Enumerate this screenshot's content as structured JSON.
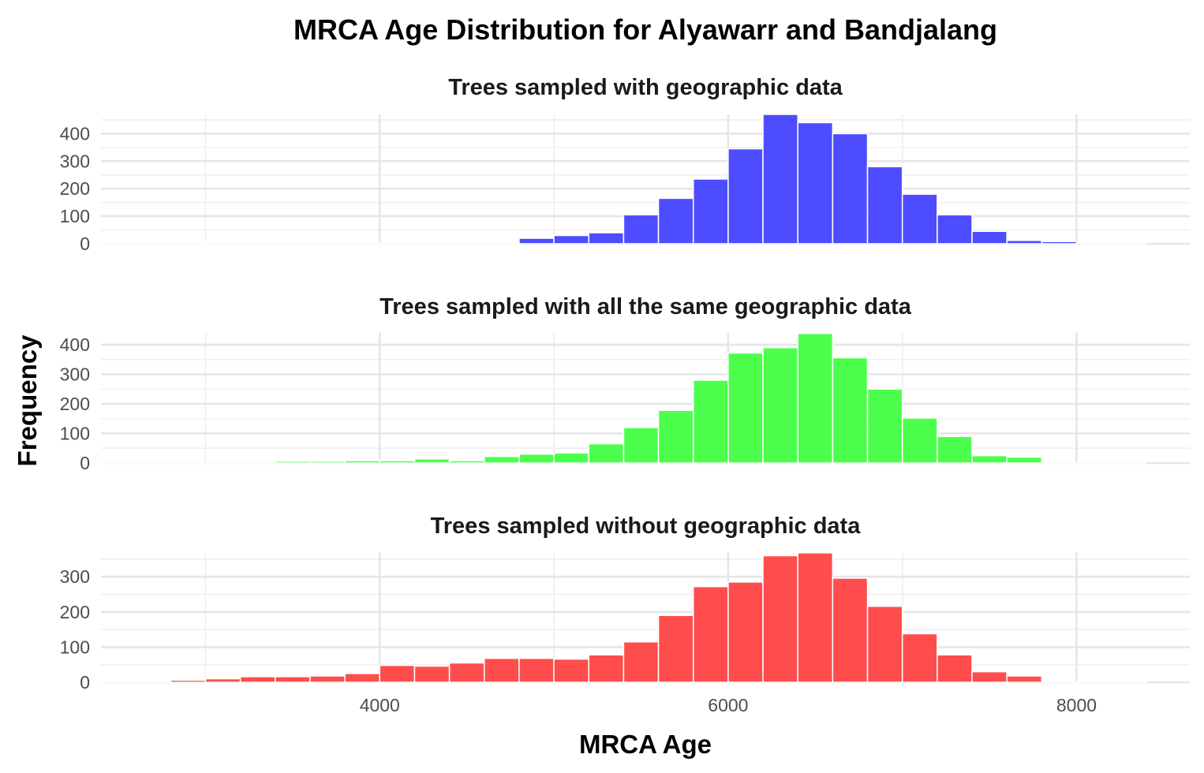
{
  "chart_data": {
    "type": "bar",
    "title": "MRCA Age Distribution for Alyawarr and Bandjalang",
    "xlabel": "MRCA Age",
    "ylabel": "Frequency",
    "xlim": [
      2400,
      8650
    ],
    "x_ticks": [
      4000,
      6000,
      8000
    ],
    "x_tick_labels": [
      "4000",
      "6000",
      "8000"
    ],
    "bin_width": 200,
    "bin_centers": [
      2500,
      2700,
      2900,
      3100,
      3300,
      3500,
      3700,
      3900,
      4100,
      4300,
      4500,
      4700,
      4900,
      5100,
      5300,
      5500,
      5700,
      5900,
      6100,
      6300,
      6500,
      6700,
      6900,
      7100,
      7300,
      7500,
      7700,
      7900,
      8100,
      8300
    ],
    "grid": true,
    "legend": "none",
    "panels": [
      {
        "name": "Trees sampled with geographic data",
        "color": "#4040ff",
        "ylim": [
          0,
          470
        ],
        "y_ticks": [
          0,
          100,
          200,
          300,
          400
        ],
        "y_tick_labels": [
          "0",
          "100",
          "200",
          "300",
          "400"
        ],
        "values": [
          0,
          0,
          0,
          0,
          0,
          0,
          0,
          0,
          0,
          1,
          0,
          3,
          20,
          30,
          40,
          105,
          165,
          235,
          345,
          470,
          440,
          400,
          280,
          180,
          105,
          45,
          12,
          8,
          0,
          0
        ]
      },
      {
        "name": "Trees sampled with all the same geographic data",
        "color": "#40ff40",
        "ylim": [
          0,
          440
        ],
        "y_ticks": [
          0,
          100,
          200,
          300,
          400
        ],
        "y_tick_labels": [
          "0",
          "100",
          "200",
          "300",
          "400"
        ],
        "values": [
          0,
          0,
          0,
          0,
          0,
          6,
          6,
          8,
          8,
          14,
          8,
          22,
          30,
          34,
          65,
          120,
          178,
          280,
          372,
          390,
          438,
          356,
          250,
          152,
          90,
          25,
          20,
          0,
          0,
          0
        ]
      },
      {
        "name": "Trees sampled without geographic data",
        "color": "#ff4040",
        "ylim": [
          0,
          370
        ],
        "y_ticks": [
          0,
          100,
          200,
          300
        ],
        "y_tick_labels": [
          "0",
          "100",
          "200",
          "300"
        ],
        "values": [
          0,
          0,
          6,
          10,
          16,
          16,
          18,
          25,
          48,
          46,
          55,
          68,
          68,
          66,
          78,
          115,
          190,
          272,
          285,
          360,
          368,
          296,
          216,
          138,
          78,
          30,
          18,
          0,
          0,
          0
        ]
      }
    ]
  }
}
